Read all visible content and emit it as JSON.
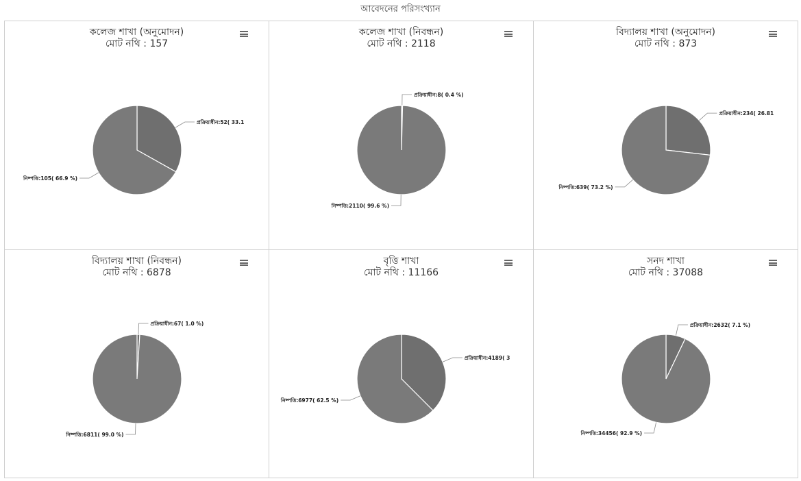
{
  "page_title": "আবেদনের পরিসংখ্যান",
  "colors": {
    "slice_processing": "#6f6f6f",
    "slice_settled": "#7a7a7a",
    "slice_border": "#ffffff",
    "leader_line": "#888888",
    "grid_border": "#cfcfcf"
  },
  "menu_icon": "hamburger-menu-icon",
  "chart_data": [
    {
      "type": "pie",
      "title": "কলেজ শাখা (অনুমোদন)",
      "subtitle": "মোট নথি : 157",
      "slices": [
        {
          "label": "প্রক্রিয়াধীন:52( 33.1",
          "value": 52
        },
        {
          "label": "নিষ্পত্তি:105( 66.9 %)",
          "value": 105
        }
      ]
    },
    {
      "type": "pie",
      "title": "কলেজ শাখা (নিবন্ধন)",
      "subtitle": "মোট নথি : 2118",
      "slices": [
        {
          "label": "প্রক্রিয়াধীন:8( 0.4 %)",
          "value": 8
        },
        {
          "label": "নিষ্পত্তি:2110( 99.6 %)",
          "value": 2110
        }
      ]
    },
    {
      "type": "pie",
      "title": "বিদ্যালয় শাখা (অনুমোদন)",
      "subtitle": "মোট নথি : 873",
      "slices": [
        {
          "label": "প্রক্রিয়াধীন:234( 26.81",
          "value": 234
        },
        {
          "label": "নিষ্পত্তি:639( 73.2 %)",
          "value": 639
        }
      ]
    },
    {
      "type": "pie",
      "title": "বিদ্যালয় শাখা (নিবন্ধন)",
      "subtitle": "মোট নথি : 6878",
      "slices": [
        {
          "label": "প্রক্রিয়াধীন:67( 1.0 %)",
          "value": 67
        },
        {
          "label": "নিষ্পত্তি:6811( 99.0 %)",
          "value": 6811
        }
      ]
    },
    {
      "type": "pie",
      "title": "বৃত্তি শাখা",
      "subtitle": "মোট নথি : 11166",
      "slices": [
        {
          "label": "প্রক্রিয়াধীন:4189( 3",
          "value": 4189
        },
        {
          "label": "নিষ্পত্তি:6977( 62.5 %)",
          "value": 6977
        }
      ]
    },
    {
      "type": "pie",
      "title": "সনদ শাখা",
      "subtitle": "মোট নথি : 37088",
      "slices": [
        {
          "label": "প্রক্রিয়াধীন:2632( 7.1 %)",
          "value": 2632
        },
        {
          "label": "নিষ্পত্তি:34456( 92.9 %)",
          "value": 34456
        }
      ]
    }
  ]
}
